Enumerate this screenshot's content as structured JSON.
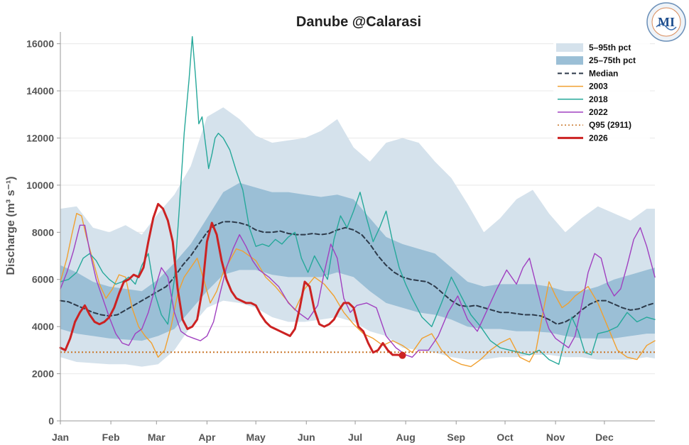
{
  "chart_data": {
    "type": "area",
    "title": "Danube @Calarasi",
    "xlabel": "",
    "ylabel": "Discharge (m³ s⁻¹)",
    "ylim": [
      0,
      16500
    ],
    "xlim": [
      0,
      365
    ],
    "grid": true,
    "legend_position": "top-right",
    "x_unit": "day of year",
    "x_ticks": [
      {
        "label": "Jan",
        "day": 0
      },
      {
        "label": "Feb",
        "day": 31
      },
      {
        "label": "Mar",
        "day": 59
      },
      {
        "label": "Apr",
        "day": 90
      },
      {
        "label": "May",
        "day": 120
      },
      {
        "label": "Jun",
        "day": 151
      },
      {
        "label": "Jul",
        "day": 181
      },
      {
        "label": "Aug",
        "day": 212
      },
      {
        "label": "Sep",
        "day": 243
      },
      {
        "label": "Oct",
        "day": 273
      },
      {
        "label": "Nov",
        "day": 304
      },
      {
        "label": "Dec",
        "day": 334
      }
    ],
    "y_ticks": [
      0,
      2000,
      4000,
      6000,
      8000,
      10000,
      12000,
      14000,
      16000
    ],
    "bands": [
      {
        "name": "5–95th pct",
        "color": "#d5e2ec",
        "x": [
          0,
          10,
          20,
          30,
          40,
          50,
          60,
          70,
          80,
          90,
          100,
          110,
          120,
          130,
          140,
          150,
          160,
          170,
          180,
          190,
          200,
          210,
          220,
          230,
          240,
          250,
          260,
          270,
          280,
          290,
          300,
          310,
          320,
          330,
          340,
          350,
          360,
          365
        ],
        "upper": [
          9000,
          9100,
          8200,
          8000,
          8300,
          7900,
          8800,
          9600,
          10800,
          12900,
          13300,
          12800,
          12100,
          11800,
          11900,
          12000,
          12300,
          12800,
          11600,
          11000,
          11800,
          12000,
          11800,
          11000,
          10300,
          9200,
          8000,
          8600,
          9400,
          9800,
          8800,
          8000,
          8600,
          9100,
          8800,
          8500,
          9000,
          9000
        ],
        "lower": [
          2700,
          2500,
          2450,
          2400,
          2400,
          2300,
          2400,
          3000,
          4000,
          4800,
          5100,
          5000,
          4800,
          4400,
          4200,
          4200,
          4300,
          4400,
          4200,
          3800,
          3600,
          3100,
          3000,
          2900,
          2700,
          2600,
          2600,
          2700,
          2700,
          2800,
          2800,
          2700,
          2700,
          2600,
          2600,
          2600,
          2700,
          2650
        ]
      },
      {
        "name": "25–75th pct",
        "color": "#9bbfd6",
        "x": [
          0,
          10,
          20,
          30,
          40,
          50,
          60,
          70,
          80,
          90,
          100,
          110,
          120,
          130,
          140,
          150,
          160,
          170,
          180,
          190,
          200,
          210,
          220,
          230,
          240,
          250,
          260,
          270,
          280,
          290,
          300,
          310,
          320,
          330,
          340,
          350,
          360,
          365
        ],
        "upper": [
          6600,
          6300,
          5900,
          5700,
          5600,
          5500,
          6000,
          6700,
          7500,
          8600,
          9700,
          10100,
          9900,
          9700,
          9700,
          9600,
          9500,
          9600,
          9400,
          8600,
          7800,
          7500,
          7300,
          7100,
          6500,
          5900,
          5700,
          5800,
          5800,
          5800,
          5700,
          5500,
          5500,
          5700,
          6000,
          6200,
          6400,
          6500
        ],
        "lower": [
          3900,
          3700,
          3600,
          3500,
          3450,
          3400,
          3600,
          3900,
          4700,
          5500,
          6200,
          6400,
          6400,
          6200,
          6100,
          6100,
          6100,
          6300,
          6100,
          5500,
          5000,
          4800,
          4600,
          4500,
          4300,
          4000,
          3900,
          3900,
          3800,
          3800,
          3750,
          3600,
          3500,
          3500,
          3500,
          3600,
          3700,
          3700
        ]
      }
    ],
    "series": [
      {
        "name": "Median",
        "color": "#2d3a4a",
        "style": "dashed",
        "width": 2,
        "x": [
          0,
          5,
          10,
          15,
          20,
          25,
          30,
          35,
          40,
          45,
          50,
          55,
          60,
          65,
          70,
          75,
          80,
          85,
          90,
          95,
          100,
          105,
          110,
          115,
          120,
          125,
          130,
          135,
          140,
          145,
          150,
          155,
          160,
          165,
          170,
          175,
          180,
          185,
          190,
          195,
          200,
          205,
          210,
          215,
          220,
          225,
          230,
          235,
          240,
          245,
          250,
          255,
          260,
          265,
          270,
          275,
          280,
          285,
          290,
          295,
          300,
          305,
          310,
          315,
          320,
          325,
          330,
          335,
          340,
          345,
          350,
          355,
          360,
          365
        ],
        "y": [
          5100,
          5050,
          4900,
          4750,
          4600,
          4500,
          4450,
          4500,
          4700,
          4900,
          5100,
          5300,
          5500,
          5700,
          6100,
          6600,
          7000,
          7500,
          8000,
          8300,
          8450,
          8450,
          8400,
          8300,
          8100,
          8000,
          8000,
          8050,
          7950,
          7900,
          7900,
          7950,
          7900,
          7950,
          8100,
          8200,
          8100,
          7900,
          7500,
          7000,
          6600,
          6300,
          6100,
          6000,
          5950,
          5900,
          5700,
          5400,
          5100,
          4900,
          4850,
          4900,
          4800,
          4700,
          4600,
          4600,
          4550,
          4500,
          4500,
          4450,
          4300,
          4100,
          4200,
          4400,
          4700,
          4950,
          5100,
          5100,
          4950,
          4800,
          4700,
          4750,
          4900,
          5000
        ]
      },
      {
        "name": "2003",
        "color": "#f0a030",
        "style": "solid",
        "width": 1.4,
        "x": [
          0,
          4,
          7,
          10,
          13,
          16,
          20,
          24,
          28,
          32,
          36,
          40,
          44,
          48,
          52,
          56,
          60,
          64,
          68,
          72,
          76,
          80,
          84,
          88,
          92,
          96,
          100,
          104,
          108,
          112,
          116,
          120,
          126,
          132,
          138,
          144,
          150,
          156,
          162,
          168,
          174,
          180,
          186,
          192,
          198,
          204,
          210,
          216,
          222,
          228,
          234,
          240,
          246,
          252,
          258,
          264,
          270,
          276,
          282,
          288,
          292,
          296,
          300,
          304,
          308,
          312,
          316,
          320,
          324,
          330,
          336,
          342,
          348,
          354,
          360,
          365
        ],
        "y": [
          5900,
          6900,
          7900,
          8800,
          8700,
          7800,
          6800,
          5800,
          5200,
          5600,
          6200,
          6100,
          4800,
          4000,
          3600,
          3300,
          2700,
          3000,
          4000,
          5400,
          6100,
          6500,
          6900,
          6000,
          5000,
          5500,
          6300,
          6800,
          7300,
          7200,
          7000,
          6800,
          6100,
          5700,
          5200,
          4700,
          5600,
          6100,
          5800,
          5300,
          4600,
          4100,
          3700,
          3500,
          3200,
          3400,
          3200,
          2900,
          3500,
          3700,
          3000,
          2600,
          2400,
          2300,
          2600,
          3000,
          3300,
          3500,
          2700,
          2500,
          3000,
          4500,
          5900,
          5300,
          4800,
          5000,
          5300,
          5500,
          5700,
          5000,
          4000,
          3000,
          2700,
          2600,
          3200,
          3400
        ]
      },
      {
        "name": "2018",
        "color": "#26a89a",
        "style": "solid",
        "width": 1.4,
        "x": [
          0,
          5,
          10,
          14,
          18,
          22,
          26,
          30,
          34,
          38,
          42,
          46,
          50,
          54,
          58,
          62,
          66,
          70,
          73,
          76,
          79,
          81,
          83,
          85,
          87,
          89,
          91,
          93,
          95,
          97,
          100,
          104,
          108,
          112,
          116,
          120,
          124,
          128,
          132,
          136,
          140,
          144,
          148,
          152,
          156,
          160,
          164,
          168,
          172,
          176,
          180,
          184,
          188,
          192,
          196,
          200,
          204,
          208,
          212,
          216,
          222,
          228,
          234,
          240,
          246,
          252,
          258,
          264,
          270,
          276,
          282,
          288,
          294,
          300,
          306,
          310,
          314,
          318,
          322,
          326,
          330,
          336,
          342,
          348,
          354,
          360,
          365
        ],
        "y": [
          5900,
          6000,
          6300,
          6900,
          7100,
          6800,
          6300,
          6000,
          5800,
          5900,
          6100,
          5800,
          6600,
          7100,
          5400,
          4500,
          4100,
          6000,
          9000,
          12200,
          14500,
          16300,
          14600,
          12600,
          12900,
          11800,
          10700,
          11300,
          12000,
          12200,
          12000,
          11500,
          10600,
          9800,
          8200,
          7400,
          7500,
          7400,
          7700,
          7500,
          7800,
          8000,
          6900,
          6300,
          7000,
          6500,
          6000,
          7700,
          8700,
          8200,
          8900,
          9700,
          8600,
          7600,
          8200,
          8900,
          7600,
          6500,
          5800,
          5200,
          4400,
          4000,
          5000,
          6100,
          5300,
          4500,
          4000,
          3400,
          3100,
          3000,
          2900,
          2800,
          3000,
          2600,
          2400,
          3500,
          4400,
          3800,
          2900,
          2800,
          3700,
          3800,
          4000,
          4600,
          4200,
          4400,
          4300
        ]
      },
      {
        "name": "2022",
        "color": "#a040c0",
        "style": "solid",
        "width": 1.4,
        "x": [
          0,
          4,
          8,
          12,
          15,
          18,
          22,
          26,
          30,
          34,
          38,
          42,
          46,
          50,
          54,
          58,
          62,
          66,
          70,
          74,
          78,
          82,
          86,
          90,
          94,
          98,
          102,
          106,
          110,
          114,
          118,
          122,
          128,
          134,
          140,
          146,
          152,
          158,
          162,
          166,
          170,
          174,
          178,
          182,
          188,
          194,
          200,
          206,
          212,
          216,
          220,
          226,
          232,
          238,
          244,
          250,
          256,
          262,
          268,
          274,
          280,
          284,
          288,
          292,
          296,
          300,
          304,
          308,
          312,
          316,
          320,
          324,
          328,
          332,
          336,
          340,
          344,
          348,
          352,
          356,
          360,
          365
        ],
        "y": [
          5600,
          6300,
          7200,
          8300,
          8300,
          7200,
          6000,
          5200,
          4400,
          3700,
          3300,
          3200,
          3700,
          3900,
          4600,
          5600,
          6500,
          6100,
          4600,
          3800,
          3600,
          3500,
          3400,
          3600,
          4200,
          5400,
          6500,
          7300,
          7900,
          7400,
          6800,
          6400,
          6100,
          5700,
          5000,
          4600,
          4300,
          4900,
          6300,
          7500,
          6900,
          5200,
          4600,
          4900,
          5000,
          4800,
          3600,
          3100,
          2800,
          2700,
          3000,
          3000,
          3600,
          4600,
          5300,
          4300,
          3800,
          4700,
          5600,
          6400,
          5800,
          6500,
          6900,
          5800,
          4700,
          3900,
          3500,
          3300,
          3100,
          3600,
          4900,
          6300,
          7100,
          6900,
          5800,
          5300,
          5600,
          6600,
          7700,
          8200,
          7400,
          6100
        ]
      },
      {
        "name": "Q95 (2911)",
        "color": "#c9772a",
        "style": "dotted",
        "width": 2,
        "x": [
          0,
          365
        ],
        "y": [
          2911,
          2911
        ]
      },
      {
        "name": "2026",
        "color": "#cc2222",
        "style": "solid",
        "width": 3,
        "x": [
          0,
          3,
          6,
          9,
          12,
          15,
          18,
          21,
          24,
          27,
          30,
          33,
          36,
          39,
          42,
          45,
          48,
          51,
          54,
          57,
          60,
          63,
          66,
          69,
          72,
          75,
          78,
          81,
          84,
          87,
          90,
          93,
          96,
          99,
          102,
          105,
          108,
          111,
          114,
          117,
          120,
          123,
          126,
          129,
          132,
          135,
          138,
          141,
          144,
          147,
          150,
          153,
          156,
          159,
          162,
          165,
          168,
          171,
          174,
          177,
          180,
          183,
          186,
          189,
          192,
          195,
          198,
          201,
          204,
          207,
          210
        ],
        "y": [
          3100,
          3000,
          3500,
          4200,
          4600,
          4900,
          4500,
          4200,
          4100,
          4200,
          4400,
          4800,
          5400,
          5900,
          6000,
          6200,
          6100,
          6500,
          7600,
          8600,
          9200,
          9000,
          8500,
          7600,
          5600,
          4300,
          3900,
          4000,
          4300,
          5500,
          7600,
          8400,
          7900,
          6800,
          6000,
          5500,
          5200,
          5100,
          5000,
          5000,
          4900,
          4500,
          4200,
          4000,
          3900,
          3800,
          3700,
          3600,
          3900,
          4800,
          5900,
          5700,
          4700,
          4100,
          4000,
          4100,
          4300,
          4700,
          5000,
          5000,
          4800,
          4000,
          3800,
          3300,
          2900,
          3000,
          3300,
          3000,
          2800,
          2800,
          2780
        ]
      }
    ],
    "markers": [
      {
        "name": "latest 2026",
        "x": 210,
        "y": 2780,
        "color": "#cc2222"
      }
    ],
    "legend": [
      {
        "label": "5–95th pct",
        "kind": "patch",
        "color": "#d5e2ec"
      },
      {
        "label": "25–75th pct",
        "kind": "patch",
        "color": "#9bbfd6"
      },
      {
        "label": "Median",
        "kind": "line",
        "color": "#2d3a4a",
        "style": "dashed"
      },
      {
        "label": "2003",
        "kind": "line",
        "color": "#f0a030",
        "style": "solid"
      },
      {
        "label": "2018",
        "kind": "line",
        "color": "#26a89a",
        "style": "solid"
      },
      {
        "label": "2022",
        "kind": "line",
        "color": "#a040c0",
        "style": "solid"
      },
      {
        "label": "Q95 (2911)",
        "kind": "line",
        "color": "#c9772a",
        "style": "dotted"
      },
      {
        "label": "2026",
        "kind": "line",
        "color": "#cc2222",
        "style": "solid"
      }
    ]
  },
  "logo": {
    "text": "MI",
    "name": "institute-logo"
  }
}
